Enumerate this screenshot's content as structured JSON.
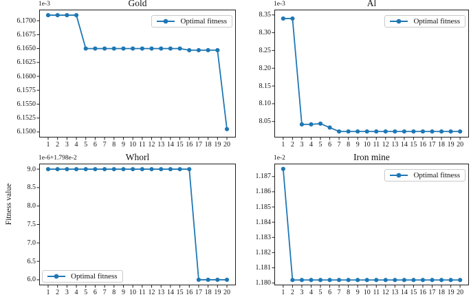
{
  "figure": {
    "ylabel": "Fitness value",
    "line_color": "#1f77b4",
    "background": "#ffffff"
  },
  "chart_data": [
    {
      "type": "line",
      "title": "Gold",
      "offset_text": "1e-3",
      "legend": {
        "label": "Optimal fitness",
        "loc": "upper-right"
      },
      "x": [
        1,
        2,
        3,
        4,
        5,
        6,
        7,
        8,
        9,
        10,
        11,
        12,
        13,
        14,
        15,
        16,
        17,
        18,
        19,
        20
      ],
      "series": [
        {
          "name": "Optimal fitness",
          "values": [
            6.171,
            6.171,
            6.171,
            6.171,
            6.165,
            6.165,
            6.165,
            6.165,
            6.165,
            6.165,
            6.165,
            6.165,
            6.165,
            6.165,
            6.165,
            6.1647,
            6.1647,
            6.1647,
            6.1647,
            6.1505
          ]
        }
      ],
      "value_scale": "1e-3",
      "xlim": [
        0.05,
        20.95
      ],
      "ylim": [
        6.149,
        6.172
      ],
      "xticks": [
        1,
        2,
        3,
        4,
        5,
        6,
        7,
        8,
        9,
        10,
        11,
        12,
        13,
        14,
        15,
        16,
        17,
        18,
        19,
        20
      ],
      "yticks": {
        "values": [
          6.15,
          6.1525,
          6.155,
          6.1575,
          6.16,
          6.1625,
          6.165,
          6.1675,
          6.17
        ],
        "labels": [
          "6.1500",
          "6.1525",
          "6.1550",
          "6.1575",
          "6.1600",
          "6.1625",
          "6.1650",
          "6.1675",
          "6.1700"
        ]
      },
      "grid": false
    },
    {
      "type": "line",
      "title": "Al",
      "offset_text": "1e-3",
      "legend": {
        "label": "Optimal fitness",
        "loc": "upper-right"
      },
      "x": [
        1,
        2,
        3,
        4,
        5,
        6,
        7,
        8,
        9,
        10,
        11,
        12,
        13,
        14,
        15,
        16,
        17,
        18,
        19,
        20
      ],
      "series": [
        {
          "name": "Optimal fitness",
          "values": [
            8.34,
            8.34,
            8.042,
            8.042,
            8.044,
            8.033,
            8.022,
            8.022,
            8.022,
            8.022,
            8.022,
            8.022,
            8.022,
            8.022,
            8.022,
            8.022,
            8.022,
            8.022,
            8.022,
            8.022
          ]
        }
      ],
      "value_scale": "1e-3",
      "xlim": [
        0.05,
        20.95
      ],
      "ylim": [
        8.005,
        8.365
      ],
      "xticks": [
        1,
        2,
        3,
        4,
        5,
        6,
        7,
        8,
        9,
        10,
        11,
        12,
        13,
        14,
        15,
        16,
        17,
        18,
        19,
        20
      ],
      "yticks": {
        "values": [
          8.05,
          8.1,
          8.15,
          8.2,
          8.25,
          8.3,
          8.35
        ],
        "labels": [
          "8.05",
          "8.10",
          "8.15",
          "8.20",
          "8.25",
          "8.30",
          "8.35"
        ]
      },
      "grid": false
    },
    {
      "type": "line",
      "title": "Whorl",
      "offset_text": "1e-6+1.798e-2",
      "legend": {
        "label": "Optimal fitness",
        "loc": "lower-left"
      },
      "x": [
        1,
        2,
        3,
        4,
        5,
        6,
        7,
        8,
        9,
        10,
        11,
        12,
        13,
        14,
        15,
        16,
        17,
        18,
        19,
        20
      ],
      "series": [
        {
          "name": "Optimal fitness",
          "values": [
            9.0,
            9.0,
            9.0,
            9.0,
            9.0,
            9.0,
            9.0,
            9.0,
            9.0,
            9.0,
            9.0,
            9.0,
            9.0,
            9.0,
            9.0,
            9.0,
            6.0,
            6.0,
            6.0,
            6.0
          ]
        }
      ],
      "value_scale": "1e-6+1.798e-2",
      "xlim": [
        0.05,
        20.95
      ],
      "ylim": [
        5.85,
        9.15
      ],
      "xticks": [
        1,
        2,
        3,
        4,
        5,
        6,
        7,
        8,
        9,
        10,
        11,
        12,
        13,
        14,
        15,
        16,
        17,
        18,
        19,
        20
      ],
      "yticks": {
        "values": [
          6.0,
          6.5,
          7.0,
          7.5,
          8.0,
          8.5,
          9.0
        ],
        "labels": [
          "6.0",
          "6.5",
          "7.0",
          "7.5",
          "8.0",
          "8.5",
          "9.0"
        ]
      },
      "grid": false
    },
    {
      "type": "line",
      "title": "Iron mine",
      "offset_text": "1e-2",
      "legend": {
        "label": "Optimal fitness",
        "loc": "upper-right"
      },
      "x": [
        1,
        2,
        3,
        4,
        5,
        6,
        7,
        8,
        9,
        10,
        11,
        12,
        13,
        14,
        15,
        16,
        17,
        18,
        19,
        20
      ],
      "series": [
        {
          "name": "Optimal fitness",
          "values": [
            1.1875,
            1.1802,
            1.1802,
            1.1802,
            1.1802,
            1.1802,
            1.1802,
            1.1802,
            1.1802,
            1.1802,
            1.1802,
            1.1802,
            1.1802,
            1.1802,
            1.1802,
            1.1802,
            1.1802,
            1.1802,
            1.1802,
            1.1802
          ]
        }
      ],
      "value_scale": "1e-2",
      "xlim": [
        0.05,
        20.95
      ],
      "ylim": [
        1.17985,
        1.18785
      ],
      "xticks": [
        1,
        2,
        3,
        4,
        5,
        6,
        7,
        8,
        9,
        10,
        11,
        12,
        13,
        14,
        15,
        16,
        17,
        18,
        19,
        20
      ],
      "yticks": {
        "values": [
          1.18,
          1.181,
          1.182,
          1.183,
          1.184,
          1.185,
          1.186,
          1.187
        ],
        "labels": [
          "1.180",
          "1.181",
          "1.182",
          "1.183",
          "1.184",
          "1.185",
          "1.186",
          "1.187"
        ]
      },
      "grid": false
    }
  ]
}
